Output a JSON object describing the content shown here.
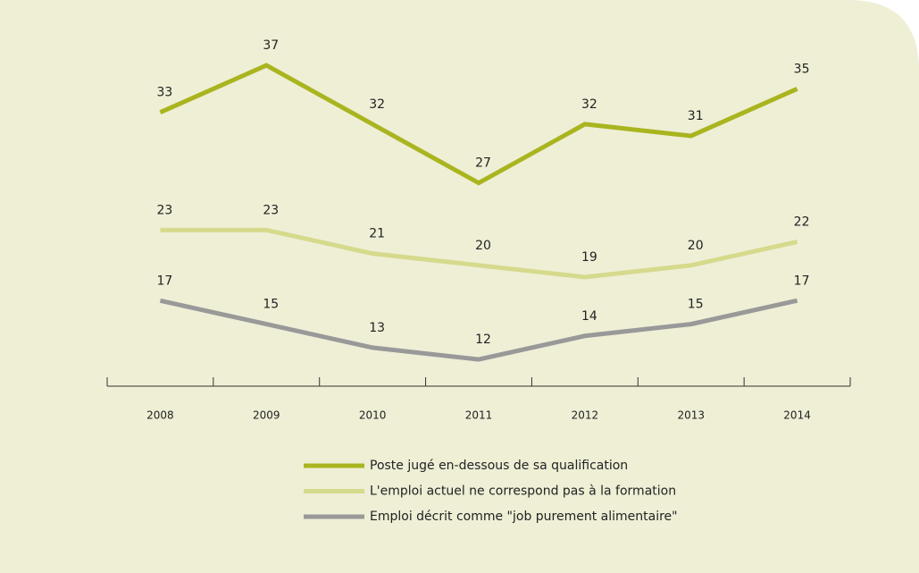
{
  "chart_data": {
    "type": "line",
    "categories": [
      "2008",
      "2009",
      "2010",
      "2011",
      "2012",
      "2013",
      "2014"
    ],
    "series": [
      {
        "name": "Poste jugé en-dessous de sa qualification",
        "color": "#a9b51f",
        "values": [
          33,
          37,
          32,
          27,
          32,
          31,
          35
        ]
      },
      {
        "name": "L'emploi actuel ne correspond pas à la formation",
        "color": "#d5da8c",
        "values": [
          23,
          23,
          21,
          20,
          19,
          20,
          22
        ]
      },
      {
        "name": "Emploi décrit comme \"job purement alimentaire\"",
        "color": "#999999",
        "values": [
          17,
          15,
          13,
          12,
          14,
          15,
          17
        ]
      }
    ],
    "ylim": [
      0,
      40
    ],
    "legend": "bottom"
  }
}
